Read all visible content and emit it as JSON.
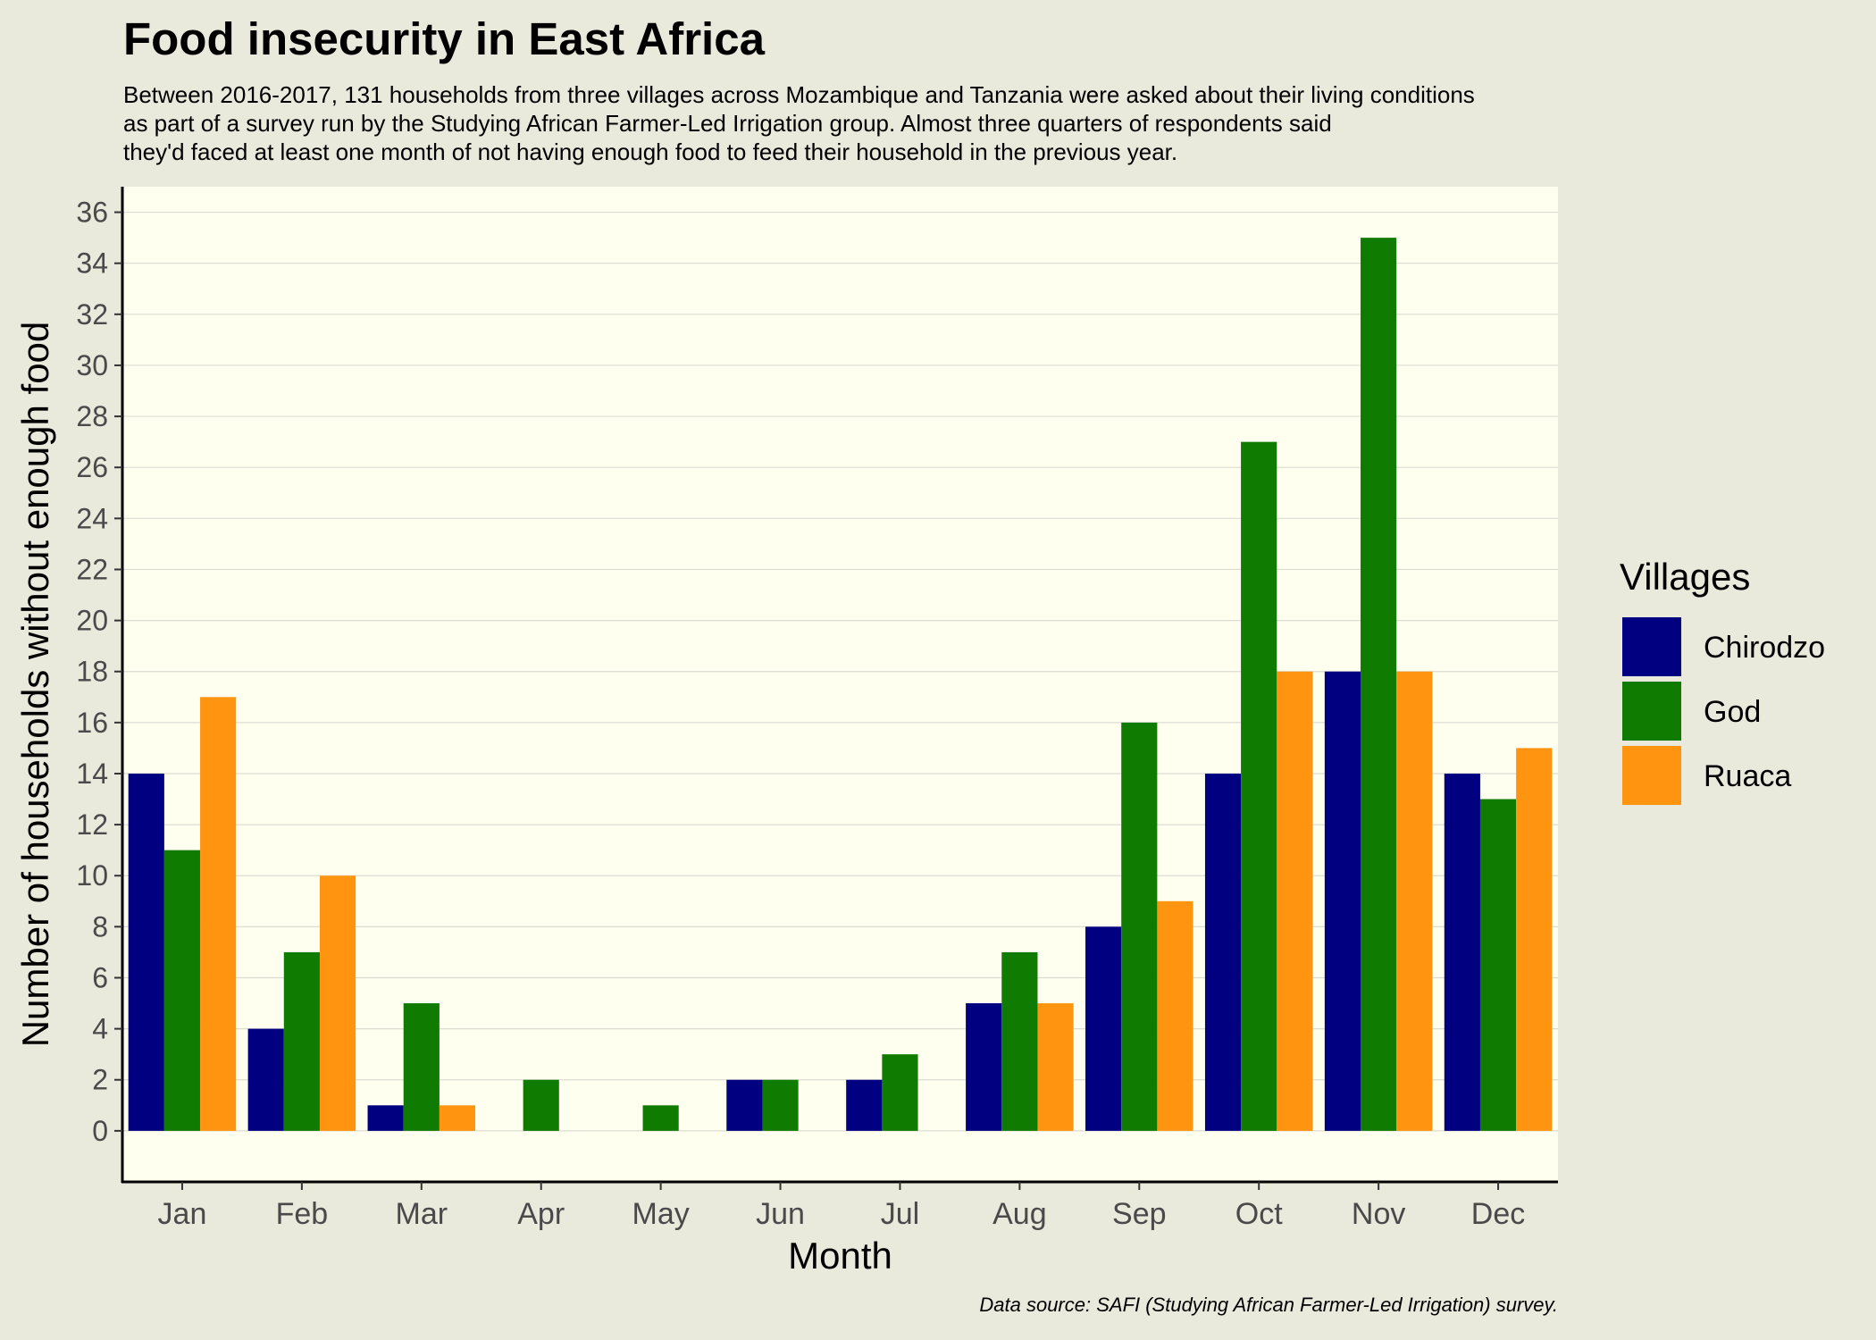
{
  "title": "Food insecurity in East Africa",
  "subtitle_lines": [
    "Between 2016-2017, 131 households from three villages across Mozambique and Tanzania were asked about their living conditions",
    "as part of a survey run by the Studying African Farmer-Led Irrigation group. Almost three quarters of respondents said",
    "they'd faced at least one month of not having enough food to feed their household in the previous year."
  ],
  "caption": "Data source: SAFI (Studying African Farmer-Led Irrigation) survey.",
  "colors": {
    "page_background": "#e9e9dc",
    "panel_background": "#fffff0",
    "gridline": "#dcdcd2",
    "Chirodzo": "#000080",
    "God": "#0f7b00",
    "Ruaca": "#ff9410"
  },
  "chart_data": {
    "type": "bar",
    "xlabel": "Month",
    "ylabel": "Number of households without enough food",
    "ylim": [
      -2,
      37
    ],
    "yticks": [
      0,
      2,
      4,
      6,
      8,
      10,
      12,
      14,
      16,
      18,
      20,
      22,
      24,
      26,
      28,
      30,
      32,
      34,
      36
    ],
    "grid": true,
    "legend": {
      "title": "Villages",
      "placement": "right"
    },
    "categories": [
      "Jan",
      "Feb",
      "Mar",
      "Apr",
      "May",
      "Jun",
      "Jul",
      "Aug",
      "Sep",
      "Oct",
      "Nov",
      "Dec"
    ],
    "series": [
      {
        "name": "Chirodzo",
        "values": [
          14,
          4,
          1,
          0,
          0,
          2,
          2,
          5,
          8,
          14,
          18,
          14
        ]
      },
      {
        "name": "God",
        "values": [
          11,
          7,
          5,
          2,
          1,
          2,
          3,
          7,
          16,
          27,
          35,
          13
        ]
      },
      {
        "name": "Ruaca",
        "values": [
          17,
          10,
          1,
          0,
          0,
          0,
          0,
          5,
          9,
          18,
          18,
          15
        ]
      }
    ]
  }
}
